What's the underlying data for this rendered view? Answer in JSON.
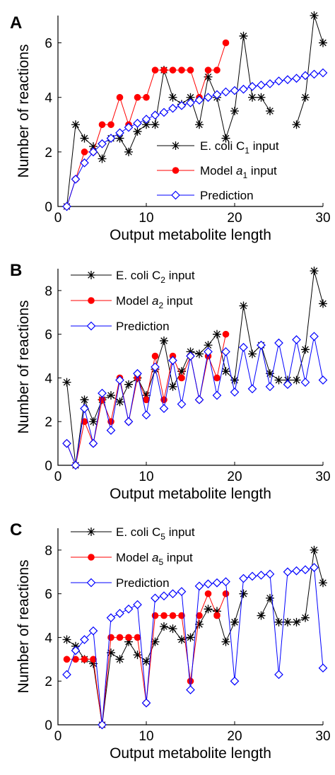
{
  "chart_data": [
    {
      "type": "line",
      "panel_label": "A",
      "xlabel": "Output metabolite length",
      "ylabel": "Number of reactions",
      "xlim": [
        0,
        30
      ],
      "ylim": [
        0,
        7
      ],
      "xticks": [
        "0",
        "10",
        "20",
        "30"
      ],
      "yticks": [
        "0",
        "2",
        "4",
        "6"
      ],
      "legend_placement": "bottom-right",
      "grid": false,
      "series": [
        {
          "name": "E. coli C",
          "sub": "1",
          "suffix": " input",
          "marker": "star",
          "color": "#000000",
          "x": [
            1,
            2,
            3,
            4,
            5,
            6,
            7,
            8,
            9,
            10,
            11,
            12,
            13,
            14,
            15,
            16,
            17,
            18,
            19,
            20,
            21,
            22,
            23,
            24,
            25,
            26,
            27,
            28,
            29,
            30
          ],
          "y": [
            0,
            3,
            2.5,
            2.2,
            1.75,
            2.5,
            2.5,
            2,
            2.75,
            3,
            3,
            5,
            4,
            3.75,
            4,
            3,
            4.75,
            4,
            2.5,
            3.5,
            6.25,
            4,
            4,
            3.5,
            null,
            null,
            3,
            4,
            7,
            6
          ]
        },
        {
          "name": "Model ",
          "sub": "1",
          "italic_prefix": "a",
          "suffix": " input",
          "marker": "dot",
          "color": "#ff0000",
          "x": [
            1,
            2,
            3,
            4,
            5,
            6,
            7,
            8,
            9,
            10,
            11,
            12,
            13,
            14,
            15,
            16,
            17,
            18,
            19
          ],
          "y": [
            0,
            1,
            2,
            2,
            3,
            3,
            4,
            3,
            4,
            4,
            5,
            5,
            5,
            5,
            5,
            4,
            5,
            5,
            6
          ]
        },
        {
          "name": "Prediction",
          "marker": "diamond",
          "color": "#0000ff",
          "x": [
            1,
            2,
            3,
            4,
            5,
            6,
            7,
            8,
            9,
            10,
            11,
            12,
            13,
            14,
            15,
            16,
            17,
            18,
            19,
            20,
            21,
            22,
            23,
            24,
            25,
            26,
            27,
            28,
            29,
            30
          ],
          "y": [
            0,
            1,
            1.6,
            2,
            2.3,
            2.5,
            2.7,
            2.9,
            3.05,
            3.2,
            3.35,
            3.45,
            3.6,
            3.7,
            3.8,
            3.9,
            4,
            4.1,
            4.2,
            4.25,
            4.3,
            4.4,
            4.45,
            4.5,
            4.6,
            4.65,
            4.7,
            4.8,
            4.85,
            4.9
          ]
        }
      ]
    },
    {
      "type": "line",
      "panel_label": "B",
      "xlabel": "Output metabolite length",
      "ylabel": "Number of reactions",
      "xlim": [
        0,
        30
      ],
      "ylim": [
        0,
        9
      ],
      "xticks": [
        "0",
        "10",
        "20",
        "30"
      ],
      "yticks": [
        "0",
        "2",
        "4",
        "6",
        "8"
      ],
      "legend_placement": "top-left",
      "grid": false,
      "series": [
        {
          "name": "E. coli C",
          "sub": "2",
          "suffix": " input",
          "marker": "star",
          "color": "#000000",
          "x": [
            1,
            2,
            3,
            4,
            5,
            6,
            7,
            8,
            9,
            10,
            11,
            12,
            13,
            14,
            15,
            16,
            17,
            18,
            19,
            20,
            21,
            22,
            23,
            24,
            25,
            26,
            27,
            28,
            29,
            30
          ],
          "y": [
            3.8,
            0,
            3,
            2,
            3,
            3.2,
            2.9,
            3.7,
            4,
            3.2,
            4.4,
            5.7,
            3.6,
            4.3,
            5.2,
            5.1,
            5.5,
            6,
            4.3,
            3.9,
            7.3,
            5.1,
            5.5,
            4.2,
            3.9,
            3.9,
            3.9,
            5.3,
            8.9,
            7.4
          ]
        },
        {
          "name": "Model ",
          "sub": "2",
          "italic_prefix": "a",
          "suffix": " input",
          "marker": "dot",
          "color": "#ff0000",
          "x": [
            1,
            2,
            3,
            4,
            5,
            6,
            7,
            8,
            9,
            10,
            11,
            12,
            13,
            14,
            15,
            16,
            17,
            18,
            19
          ],
          "y": [
            1,
            0,
            2,
            1,
            3,
            2,
            4,
            2,
            4,
            3,
            5,
            3,
            5,
            4,
            5,
            3,
            5,
            4,
            6
          ]
        },
        {
          "name": "Prediction",
          "marker": "diamond",
          "color": "#0000ff",
          "x": [
            1,
            2,
            3,
            4,
            5,
            6,
            7,
            8,
            9,
            10,
            11,
            12,
            13,
            14,
            15,
            16,
            17,
            18,
            19,
            20,
            21,
            22,
            23,
            24,
            25,
            26,
            27,
            28,
            29,
            30
          ],
          "y": [
            1,
            0,
            2.6,
            1,
            3.3,
            1.6,
            3.9,
            2,
            4.2,
            2.3,
            4.5,
            2.6,
            4.8,
            2.8,
            5,
            3,
            5.2,
            3.2,
            5.2,
            3.35,
            5.4,
            3.5,
            5.5,
            3.6,
            5.6,
            3.7,
            5.75,
            3.8,
            5.9,
            3.9
          ]
        }
      ]
    },
    {
      "type": "line",
      "panel_label": "C",
      "xlabel": "Output metabolite length",
      "ylabel": "Number of reactions",
      "xlim": [
        0,
        30
      ],
      "ylim": [
        0,
        9
      ],
      "xticks": [
        "0",
        "10",
        "20",
        "30"
      ],
      "yticks": [
        "0",
        "2",
        "4",
        "6",
        "8"
      ],
      "legend_placement": "top-left",
      "grid": false,
      "series": [
        {
          "name": "E. coli C",
          "sub": "5",
          "suffix": " input",
          "marker": "star",
          "color": "#000000",
          "x": [
            1,
            2,
            3,
            4,
            5,
            6,
            7,
            8,
            9,
            10,
            11,
            12,
            13,
            14,
            15,
            16,
            17,
            18,
            19,
            20,
            21,
            22,
            23,
            24,
            25,
            26,
            27,
            28,
            29,
            30
          ],
          "y": [
            3.9,
            3.6,
            3,
            2.8,
            0,
            3.3,
            3,
            3.8,
            3.2,
            2.9,
            3.8,
            4.5,
            4.4,
            3.9,
            4,
            4.6,
            5.3,
            5.2,
            3.8,
            4.7,
            6,
            null,
            5,
            5.8,
            4.7,
            4.7,
            4.7,
            4.9,
            8,
            6.5
          ]
        },
        {
          "name": "Model ",
          "sub": "5",
          "italic_prefix": "a",
          "suffix": " input",
          "marker": "dot",
          "color": "#ff0000",
          "x": [
            1,
            2,
            3,
            4,
            5,
            6,
            7,
            8,
            9,
            10,
            11,
            12,
            13,
            14,
            15,
            16,
            17,
            18,
            19
          ],
          "y": [
            3,
            3,
            3,
            3,
            0,
            4,
            4,
            4,
            4,
            1,
            5,
            5,
            5,
            5,
            2,
            5,
            6,
            5,
            6
          ]
        },
        {
          "name": "Prediction",
          "marker": "diamond",
          "color": "#0000ff",
          "x": [
            1,
            2,
            3,
            4,
            5,
            6,
            7,
            8,
            9,
            10,
            11,
            12,
            13,
            14,
            15,
            16,
            17,
            18,
            19,
            20,
            21,
            22,
            23,
            24,
            25,
            26,
            27,
            28,
            29,
            30
          ],
          "y": [
            2.3,
            3.4,
            3.9,
            4.3,
            0,
            4.9,
            5.1,
            5.3,
            5.5,
            1,
            5.8,
            5.9,
            6,
            6.1,
            1.6,
            6.35,
            6.45,
            6.5,
            6.55,
            2,
            6.7,
            6.8,
            6.85,
            6.9,
            2.3,
            7,
            7.05,
            7.1,
            7.2,
            2.6
          ]
        }
      ]
    }
  ]
}
